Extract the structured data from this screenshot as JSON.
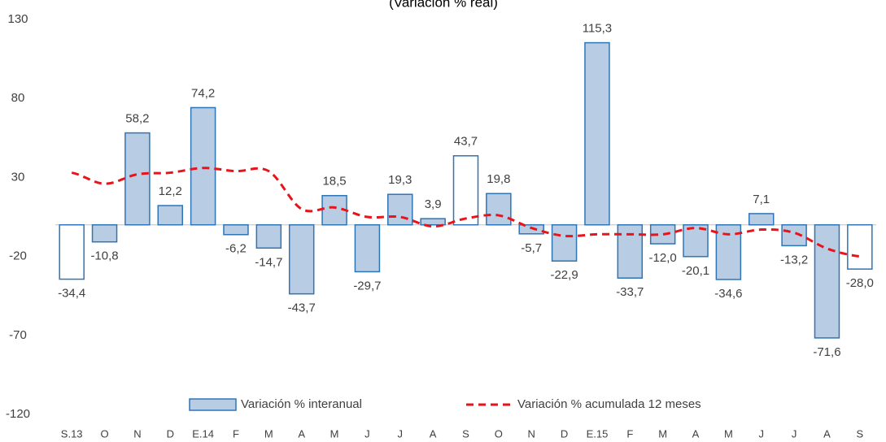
{
  "chart_data": {
    "type": "bar",
    "title": "(Variación % real)",
    "categories": [
      "S.13",
      "O",
      "N",
      "D",
      "E.14",
      "F",
      "M",
      "A",
      "M",
      "J",
      "J",
      "A",
      "S",
      "O",
      "N",
      "D",
      "E.15",
      "F",
      "M",
      "A",
      "M",
      "J",
      "J",
      "A",
      "S"
    ],
    "series": [
      {
        "name": "Variación % interanual",
        "type": "bar",
        "color": "#b8cce4",
        "edge_color": "#2e75b6",
        "point_colors": [
          "#ffffff",
          "#b8cce4",
          "#b8cce4",
          "#b8cce4",
          "#b8cce4",
          "#b8cce4",
          "#b8cce4",
          "#b8cce4",
          "#b8cce4",
          "#b8cce4",
          "#b8cce4",
          "#b8cce4",
          "#ffffff",
          "#b8cce4",
          "#b8cce4",
          "#b8cce4",
          "#b8cce4",
          "#b8cce4",
          "#b8cce4",
          "#b8cce4",
          "#b8cce4",
          "#b8cce4",
          "#b8cce4",
          "#b8cce4",
          "#ffffff"
        ],
        "values": [
          -34.4,
          -10.8,
          58.2,
          12.2,
          74.2,
          -6.2,
          -14.7,
          -43.7,
          18.5,
          -29.7,
          19.3,
          3.9,
          43.7,
          19.8,
          -5.7,
          -22.9,
          115.3,
          -33.7,
          -12.0,
          -20.1,
          -34.6,
          7.1,
          -13.2,
          -71.6,
          -28.0
        ],
        "value_labels": [
          "-34,4",
          "-10,8",
          "58,2",
          "12,2",
          "74,2",
          "-6,2",
          "-14,7",
          "-43,7",
          "18,5",
          "-29,7",
          "19,3",
          "3,9",
          "43,7",
          "19,8",
          "-5,7",
          "-22,9",
          "115,3",
          "-33,7",
          "-12,0",
          "-20,1",
          "-34,6",
          "7,1",
          "-13,2",
          "-71,6",
          "-28,0"
        ]
      },
      {
        "name": "Variación % acumulada 12 meses",
        "type": "line",
        "color": "#e8141b",
        "dashed": true,
        "values": [
          33,
          26,
          32,
          33,
          36,
          34,
          34,
          10,
          11,
          5,
          5,
          -1,
          4,
          6,
          -2,
          -7,
          -6,
          -6,
          -6,
          -2,
          -6,
          -3,
          -5,
          -15,
          -20
        ]
      }
    ],
    "ylim": [
      -120,
      130
    ],
    "yticks": [
      130,
      80,
      30,
      -20,
      -70,
      -120
    ],
    "legend": "bottom"
  }
}
